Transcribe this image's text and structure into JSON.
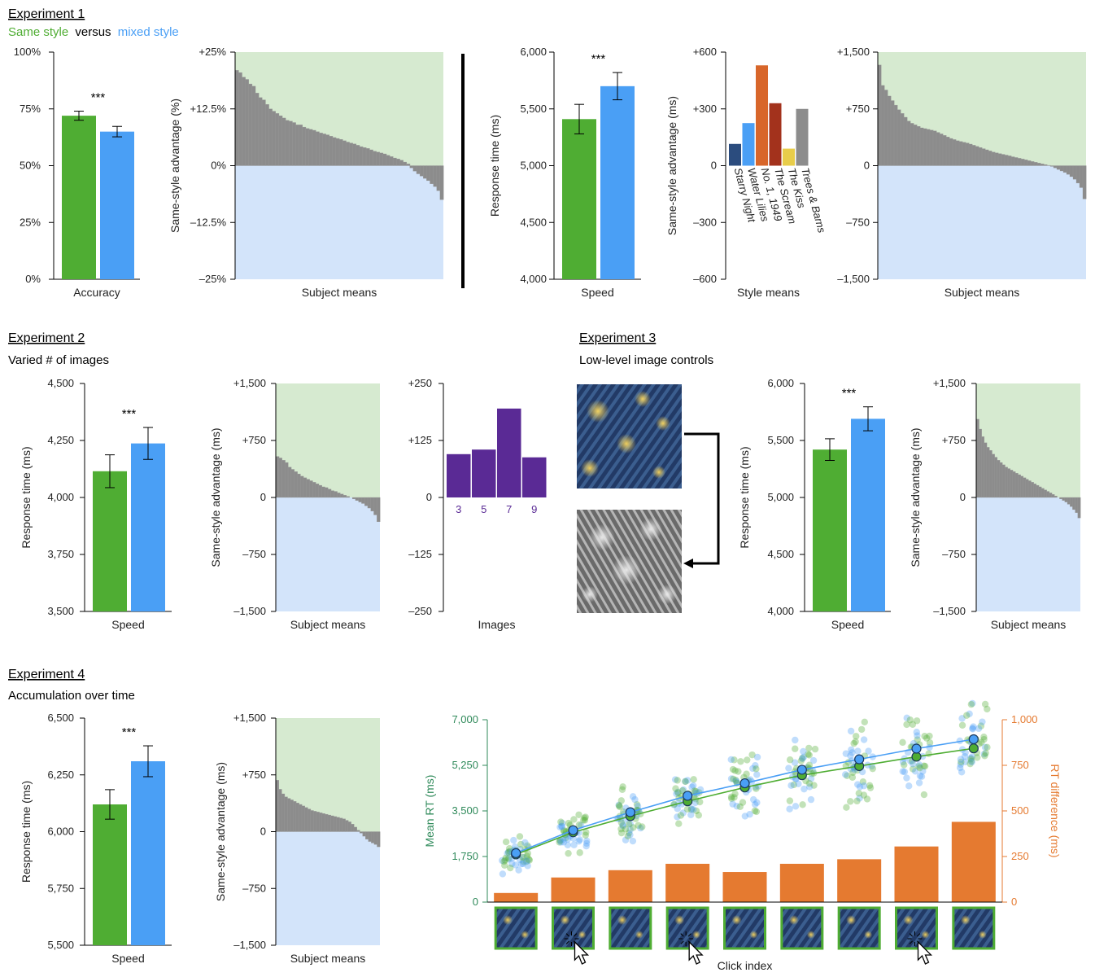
{
  "colors": {
    "same": "#4fad33",
    "mixed": "#4a9ff5",
    "pos_region": "#d6ead0",
    "neg_region": "#d3e4fa",
    "subject_bar": "#8c8c8c",
    "purple": "#5a2a95",
    "orange": "#e57a30",
    "mean_rt_axis": "#2f8a5a",
    "rt_diff_axis": "#e57a30"
  },
  "headers": {
    "exp1_title": "Experiment 1",
    "exp1_legend_same": "Same style",
    "exp1_legend_versus": "versus",
    "exp1_legend_mixed": "mixed style",
    "exp2_title": "Experiment 2",
    "exp2_sub": "Varied # of images",
    "exp3_title": "Experiment 3",
    "exp3_sub": "Low-level image controls",
    "exp4_title": "Experiment 4",
    "exp4_sub": "Accumulation over time"
  },
  "chart_data": [
    {
      "id": "e1_accuracy",
      "type": "bar",
      "xlabel": "Accuracy",
      "ylim": [
        0,
        100
      ],
      "ticks": [
        "0%",
        "25%",
        "50%",
        "75%",
        "100%"
      ],
      "categories": [
        "Same style",
        "mixed style"
      ],
      "values": [
        72,
        65
      ],
      "errors": [
        2,
        2.3
      ],
      "significance": "***"
    },
    {
      "id": "e1_subjects",
      "type": "bar",
      "xlabel": "Subject means",
      "ylabel": "Same-style advantage (%)",
      "ylim": [
        -25,
        25
      ],
      "ticks": [
        "–25%",
        "–12.5%",
        "0%",
        "+12.5%",
        "+25%"
      ],
      "values": [
        21,
        20.5,
        19.5,
        19,
        18,
        17.5,
        16,
        15,
        14.5,
        13.5,
        12.5,
        12,
        11.5,
        11,
        10.5,
        10,
        9.8,
        9.5,
        9,
        9,
        8.5,
        8.2,
        8,
        7.8,
        7.5,
        7.2,
        7,
        6.8,
        6.5,
        6.2,
        6,
        5.8,
        5.5,
        5.2,
        5,
        4.8,
        4.5,
        4.2,
        4,
        3.8,
        3.5,
        3.2,
        3,
        2.8,
        2.6,
        2.3,
        2,
        1.7,
        1.5,
        1.2,
        0.8,
        0.4,
        -0.5,
        -1.2,
        -1.8,
        -2.3,
        -2.8,
        -3.3,
        -4,
        -4.6,
        -5.5,
        -7.5
      ]
    },
    {
      "id": "e1_speed",
      "type": "bar",
      "xlabel": "Speed",
      "ylabel": "Response time (ms)",
      "ylim": [
        4000,
        6000
      ],
      "ticks": [
        "4,000",
        "4,500",
        "5,000",
        "5,500",
        "6,000"
      ],
      "categories": [
        "Same style",
        "mixed style"
      ],
      "values": [
        5410,
        5700
      ],
      "errors": [
        130,
        120
      ],
      "significance": "***"
    },
    {
      "id": "e1_styles",
      "type": "bar",
      "xlabel": "Style means",
      "ylabel": "Same-style advantage (ms)",
      "ylim": [
        -600,
        600
      ],
      "ticks": [
        "–600",
        "–300",
        "0",
        "+300",
        "+600"
      ],
      "categories": [
        "Starry Night",
        "Water Lilies",
        "No. 1, 1949",
        "The Scream",
        "The Kiss",
        "Trees & Barns"
      ],
      "values": [
        115,
        225,
        530,
        330,
        90,
        300
      ],
      "bar_colors": [
        "#2b4c7e",
        "#4a9ff5",
        "#d8662a",
        "#a3321c",
        "#e8cd4a",
        "#8c8c8c"
      ]
    },
    {
      "id": "e1_rt_subjects",
      "type": "bar",
      "xlabel": "Subject means",
      "ylim": [
        -1500,
        1500
      ],
      "ticks": [
        "–1,500",
        "–750",
        "0",
        "+750",
        "+1,500"
      ],
      "values": [
        1330,
        1060,
        1000,
        920,
        860,
        800,
        740,
        690,
        640,
        590,
        560,
        540,
        520,
        500,
        490,
        480,
        470,
        460,
        440,
        420,
        400,
        380,
        360,
        345,
        330,
        320,
        310,
        300,
        285,
        270,
        255,
        240,
        225,
        210,
        195,
        180,
        170,
        160,
        150,
        140,
        130,
        118,
        108,
        98,
        88,
        78,
        66,
        55,
        45,
        35,
        25,
        15,
        5,
        -10,
        -30,
        -50,
        -70,
        -90,
        -115,
        -145,
        -180,
        -230,
        -290,
        -440
      ]
    },
    {
      "id": "e2_speed",
      "type": "bar",
      "xlabel": "Speed",
      "ylabel": "Response time (ms)",
      "ylim": [
        3500,
        4500
      ],
      "ticks": [
        "3,500",
        "3,750",
        "4,000",
        "4,250",
        "4,500"
      ],
      "categories": [
        "Same style",
        "mixed style"
      ],
      "values": [
        4115,
        4237
      ],
      "errors": [
        72,
        70
      ],
      "significance": "***"
    },
    {
      "id": "e2_subjects",
      "type": "bar",
      "xlabel": "Subject means",
      "ylabel": "Same-style advantage (ms)",
      "ylim": [
        -1500,
        1500
      ],
      "ticks": [
        "–1,500",
        "–750",
        "0",
        "+750",
        "+1,500"
      ],
      "values": [
        540,
        520,
        490,
        460,
        400,
        370,
        340,
        310,
        280,
        260,
        240,
        220,
        200,
        180,
        160,
        140,
        130,
        110,
        90,
        80,
        60,
        45,
        30,
        15,
        0,
        -20,
        -40,
        -60,
        -80,
        -110,
        -140,
        -180,
        -230,
        -320
      ]
    },
    {
      "id": "e2_images",
      "type": "bar",
      "xlabel": "Images",
      "ylim": [
        -250,
        250
      ],
      "ticks": [
        "–250",
        "–125",
        "0",
        "+125",
        "+250"
      ],
      "categories": [
        "3",
        "5",
        "7",
        "9"
      ],
      "values": [
        95,
        105,
        195,
        88
      ]
    },
    {
      "id": "e3_speed",
      "type": "bar",
      "xlabel": "Speed",
      "ylabel": "Response time (ms)",
      "ylim": [
        4000,
        6000
      ],
      "ticks": [
        "4,000",
        "4,500",
        "5,000",
        "5,500",
        "6,000"
      ],
      "categories": [
        "Same style",
        "mixed style"
      ],
      "values": [
        5420,
        5690
      ],
      "errors": [
        95,
        105
      ],
      "significance": "***"
    },
    {
      "id": "e3_subjects",
      "type": "bar",
      "xlabel": "Subject means",
      "ylabel": "Same-style advantage (ms)",
      "ylim": [
        -1500,
        1500
      ],
      "ticks": [
        "–1,500",
        "–750",
        "0",
        "+750",
        "+1,500"
      ],
      "values": [
        1030,
        900,
        800,
        720,
        660,
        620,
        570,
        530,
        490,
        460,
        430,
        400,
        380,
        360,
        340,
        320,
        300,
        280,
        260,
        240,
        220,
        200,
        180,
        160,
        140,
        120,
        100,
        80,
        60,
        40,
        20,
        0,
        -20,
        -40,
        -60,
        -90,
        -120,
        -160,
        -200,
        -270
      ]
    },
    {
      "id": "e4_speed",
      "type": "bar",
      "xlabel": "Speed",
      "ylabel": "Response time (ms)",
      "ylim": [
        5500,
        6500
      ],
      "ticks": [
        "5,500",
        "5,750",
        "6,000",
        "6,250",
        "6,500"
      ],
      "categories": [
        "Same style",
        "mixed style"
      ],
      "values": [
        6120,
        6310
      ],
      "errors": [
        65,
        68
      ],
      "significance": "***"
    },
    {
      "id": "e4_subjects",
      "type": "bar",
      "xlabel": "Subject means",
      "ylabel": "Same-style advantage (ms)",
      "ylim": [
        -1500,
        1500
      ],
      "ticks": [
        "–1,500",
        "–750",
        "0",
        "+750",
        "+1,500"
      ],
      "values": [
        680,
        560,
        500,
        460,
        440,
        420,
        400,
        380,
        360,
        340,
        320,
        300,
        280,
        270,
        260,
        250,
        240,
        230,
        220,
        210,
        200,
        190,
        180,
        170,
        150,
        130,
        100,
        60,
        20,
        -20,
        -60,
        -100,
        -130,
        -150,
        -170,
        -200
      ]
    },
    {
      "id": "e4_clicks",
      "type": "line",
      "xlabel": "Click index",
      "ylabel": "Mean RT (ms)",
      "y2label": "RT difference (ms)",
      "ylim": [
        0,
        7000
      ],
      "y2lim": [
        0,
        1000
      ],
      "ticks": [
        "0",
        "1,750",
        "3,500",
        "5,250",
        "7,000"
      ],
      "ticks2": [
        "0",
        "250",
        "500",
        "750",
        "1,000"
      ],
      "x": [
        1,
        2,
        3,
        4,
        5,
        6,
        7,
        8,
        9
      ],
      "series": [
        {
          "values": [
            1830,
            2680,
            3300,
            3870,
            4400,
            4870,
            5220,
            5580,
            5900
          ]
        },
        {
          "values": [
            1880,
            2760,
            3450,
            4080,
            4560,
            5080,
            5480,
            5890,
            6250
          ]
        }
      ],
      "bar_values": [
        50,
        135,
        175,
        210,
        165,
        210,
        235,
        305,
        440
      ]
    }
  ]
}
